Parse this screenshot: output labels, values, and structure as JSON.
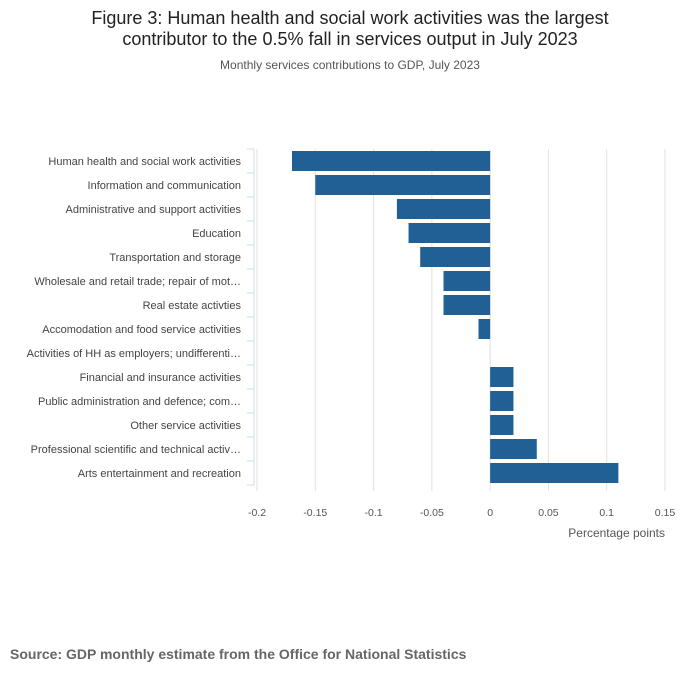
{
  "figure": {
    "title_lines": [
      "Figure 3: Human health and social work activities was the largest",
      "contributor to the 0.5% fall in services output in July 2023"
    ],
    "subtitle": "Monthly services contributions to GDP, July 2023",
    "source": "Source: GDP monthly estimate from the Office for National Statistics"
  },
  "chart_data": {
    "type": "bar",
    "orientation": "horizontal",
    "title": "Figure 3: Human health and social work activities was the largest contributor to the 0.5% fall in services output in July 2023",
    "subtitle": "Monthly services contributions to GDP, July 2023",
    "xlabel": "Percentage points",
    "ylabel": "",
    "xlim": [
      -0.2,
      0.15
    ],
    "xticks": [
      -0.2,
      -0.15,
      -0.1,
      -0.05,
      0,
      0.05,
      0.1,
      0.15
    ],
    "xtick_labels": [
      "-0.2",
      "-0.15",
      "-0.1",
      "-0.05",
      "0",
      "0.05",
      "0.1",
      "0.15"
    ],
    "grid": true,
    "bar_color": "#206095",
    "categories": [
      "Human health and social work activities",
      "Information and communication",
      "Administrative and support activities",
      "Education",
      "Transportation and storage",
      "Wholesale and retail trade; repair of mot…",
      "Real estate activties",
      "Accomodation and food service activities",
      "Activities of HH as employers; undifferenti…",
      "Financial and insurance activities",
      "Public administration and defence; com…",
      "Other service activities",
      "Professional scientific and technical activ…",
      "Arts entertainment and recreation"
    ],
    "values": [
      -0.17,
      -0.15,
      -0.08,
      -0.07,
      -0.06,
      -0.04,
      -0.04,
      -0.01,
      0,
      0.02,
      0.02,
      0.02,
      0.04,
      0.11
    ]
  }
}
